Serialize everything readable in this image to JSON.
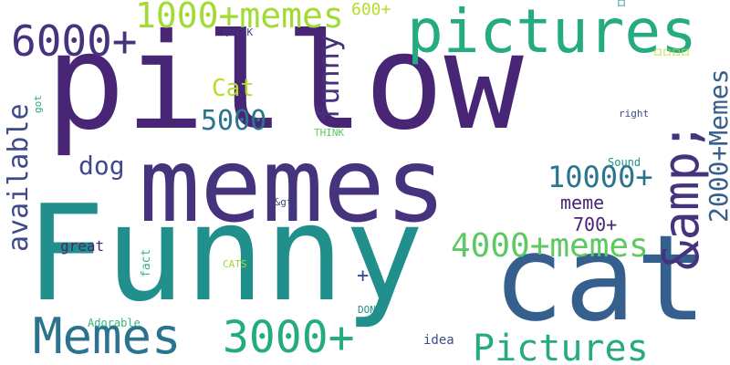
{
  "palette": {
    "dark_purple": "#482575",
    "purple": "#46337e",
    "indigo": "#3e4a89",
    "blue": "#355f8d",
    "steel": "#2b748e",
    "teal": "#21908d",
    "green_teal": "#25ab82",
    "green": "#35b779",
    "light_green": "#5ec962",
    "lime": "#a2da37",
    "yellow_green": "#b5de2b"
  },
  "words": [
    {
      "id": "pillow",
      "text": "pillow"
    },
    {
      "id": "memes-big",
      "text": "memes"
    },
    {
      "id": "funny-big",
      "text": "Funny"
    },
    {
      "id": "cat-big",
      "text": "cat"
    },
    {
      "id": "pictures-top",
      "text": "pictures"
    },
    {
      "id": "amp",
      "text": "&amp;"
    },
    {
      "id": "6000",
      "text": "6000+"
    },
    {
      "id": "1000",
      "text": "1000+memes"
    },
    {
      "id": "600",
      "text": "600+"
    },
    {
      "id": "quick",
      "text": "QUICK"
    },
    {
      "id": "funny-small",
      "text": "funny"
    },
    {
      "id": "cat-small",
      "text": "Cat"
    },
    {
      "id": "5000",
      "text": "5000"
    },
    {
      "id": "dog",
      "text": "dog"
    },
    {
      "id": "available",
      "text": "available"
    },
    {
      "id": "got",
      "text": "got"
    },
    {
      "id": "think",
      "text": "THINK"
    },
    {
      "id": "2000",
      "text": "2000+Memes"
    },
    {
      "id": "sym1",
      "text": "ロ"
    },
    {
      "id": "sym2",
      "text": "ロロロロ"
    },
    {
      "id": "right",
      "text": "right"
    },
    {
      "id": "10000",
      "text": "10000+"
    },
    {
      "id": "sound",
      "text": "Sound"
    },
    {
      "id": "gt",
      "text": ":&gt;"
    },
    {
      "id": "meme",
      "text": "meme"
    },
    {
      "id": "700",
      "text": "700+"
    },
    {
      "id": "great",
      "text": "great"
    },
    {
      "id": "4000",
      "text": "4000+memes"
    },
    {
      "id": "fact",
      "text": "fact"
    },
    {
      "id": "cats",
      "text": "CATS"
    },
    {
      "id": "plus",
      "text": "+"
    },
    {
      "id": "memes-small",
      "text": "Memes"
    },
    {
      "id": "3000",
      "text": "3000+"
    },
    {
      "id": "dont",
      "text": "DONT"
    },
    {
      "id": "adorable",
      "text": "Adorable"
    },
    {
      "id": "idea",
      "text": "idea"
    },
    {
      "id": "pictures-bottom",
      "text": "Pictures"
    }
  ]
}
